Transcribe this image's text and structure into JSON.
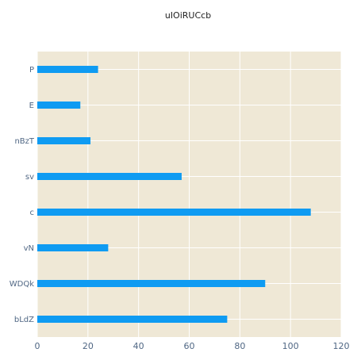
{
  "chart_data": {
    "type": "bar",
    "orientation": "horizontal",
    "title": "uIOiRUCcb",
    "xlabel": "",
    "ylabel": "",
    "categories": [
      "P",
      "E",
      "nBzT",
      "sv",
      "c",
      "vN",
      "WDQk",
      "bLdZ"
    ],
    "values": [
      24,
      17,
      21,
      57,
      108,
      28,
      90,
      75
    ],
    "xlim": [
      0,
      120
    ],
    "xticks": [
      0,
      20,
      40,
      60,
      80,
      100,
      120
    ],
    "grid": true,
    "legend": "none",
    "colors": {
      "bar": "#0f9bf2",
      "plot_background": "#efe8d6",
      "grid": "#ffffff",
      "tick_text": "#506784",
      "title_text": "#222222"
    }
  }
}
